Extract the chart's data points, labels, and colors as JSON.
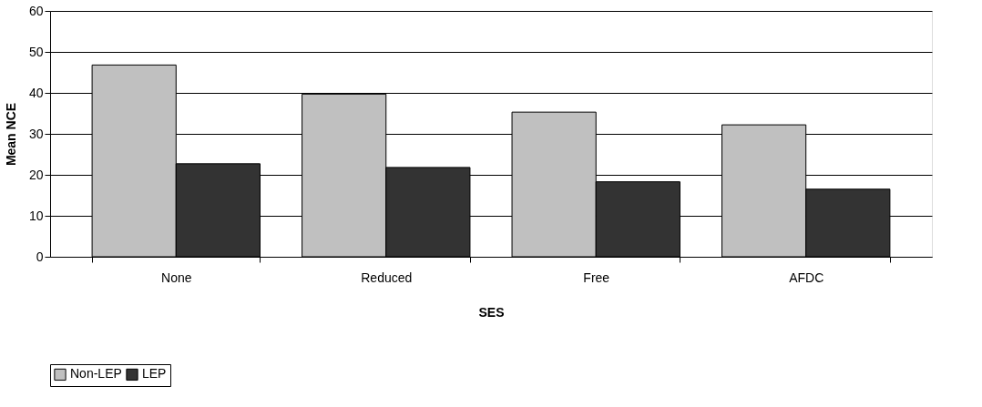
{
  "chart_data": {
    "type": "bar",
    "xlabel": "SES",
    "ylabel": "Mean NCE",
    "categories": [
      "None",
      "Reduced",
      "Free",
      "AFDC"
    ],
    "series": [
      {
        "name": "Non-LEP",
        "color": "#c0c0c0",
        "values": [
          46.8,
          39.7,
          35.3,
          32.2
        ]
      },
      {
        "name": "LEP",
        "color": "#333333",
        "values": [
          22.7,
          21.8,
          18.3,
          16.5
        ]
      }
    ],
    "ylim": [
      0,
      60
    ],
    "yticks": [
      0,
      10,
      20,
      30,
      40,
      50,
      60
    ],
    "grid": "y",
    "legend": "bottom"
  }
}
